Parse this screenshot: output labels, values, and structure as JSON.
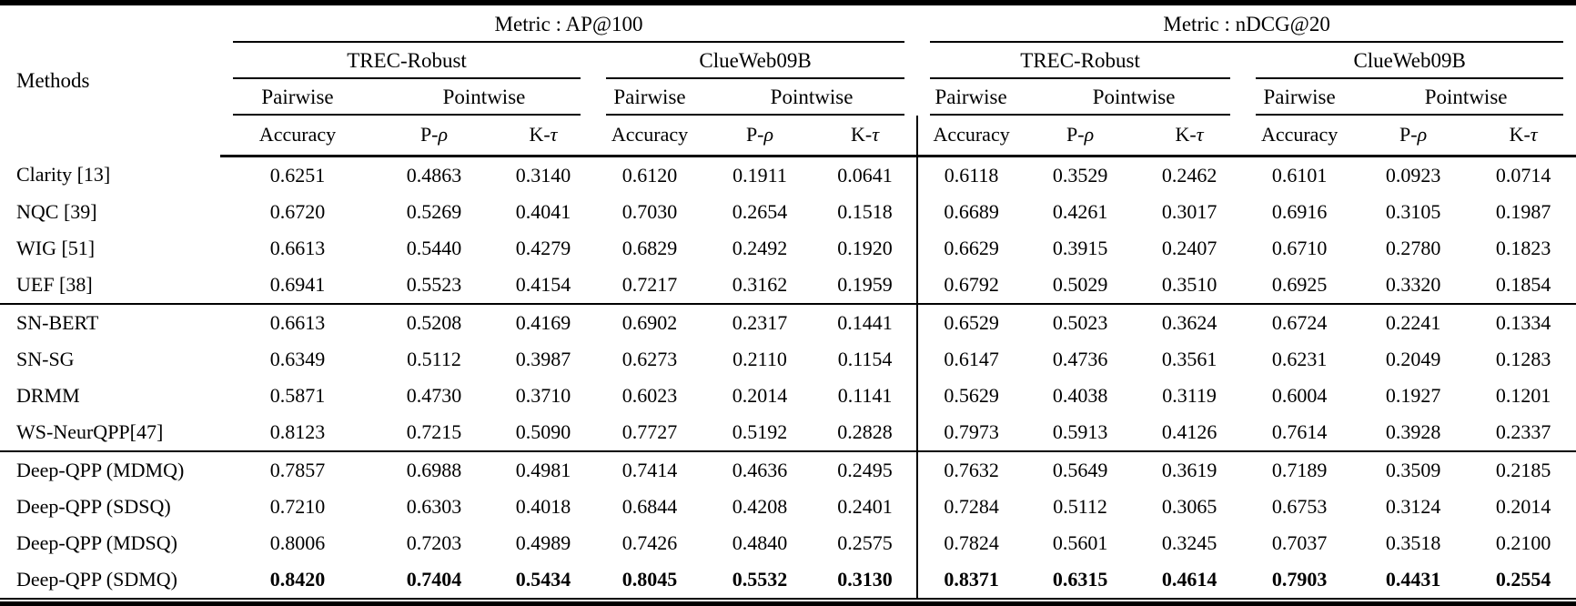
{
  "table": {
    "methods_header": "Methods",
    "metric_groups": [
      {
        "label": "Metric : AP@100"
      },
      {
        "label": "Metric : nDCG@20"
      }
    ],
    "dataset_headers": [
      "TREC-Robust",
      "ClueWeb09B"
    ],
    "eval_type_headers": {
      "pairwise": "Pairwise",
      "pointwise": "Pointwise"
    },
    "col_headers": [
      {
        "prefix": "Accuracy",
        "greek": ""
      },
      {
        "prefix": "P-",
        "greek": "ρ"
      },
      {
        "prefix": "K-",
        "greek": "τ"
      }
    ],
    "groups": [
      {
        "rows": [
          {
            "method": "Clarity [13]",
            "bold": false,
            "values": [
              "0.6251",
              "0.4863",
              "0.3140",
              "0.6120",
              "0.1911",
              "0.0641",
              "0.6118",
              "0.3529",
              "0.2462",
              "0.6101",
              "0.0923",
              "0.0714"
            ]
          },
          {
            "method": "NQC [39]",
            "bold": false,
            "values": [
              "0.6720",
              "0.5269",
              "0.4041",
              "0.7030",
              "0.2654",
              "0.1518",
              "0.6689",
              "0.4261",
              "0.3017",
              "0.6916",
              "0.3105",
              "0.1987"
            ]
          },
          {
            "method": "WIG [51]",
            "bold": false,
            "values": [
              "0.6613",
              "0.5440",
              "0.4279",
              "0.6829",
              "0.2492",
              "0.1920",
              "0.6629",
              "0.3915",
              "0.2407",
              "0.6710",
              "0.2780",
              "0.1823"
            ]
          },
          {
            "method": "UEF [38]",
            "bold": false,
            "values": [
              "0.6941",
              "0.5523",
              "0.4154",
              "0.7217",
              "0.3162",
              "0.1959",
              "0.6792",
              "0.5029",
              "0.3510",
              "0.6925",
              "0.3320",
              "0.1854"
            ]
          }
        ]
      },
      {
        "rows": [
          {
            "method": "SN-BERT",
            "bold": false,
            "values": [
              "0.6613",
              "0.5208",
              "0.4169",
              "0.6902",
              "0.2317",
              "0.1441",
              "0.6529",
              "0.5023",
              "0.3624",
              "0.6724",
              "0.2241",
              "0.1334"
            ]
          },
          {
            "method": "SN-SG",
            "bold": false,
            "values": [
              "0.6349",
              "0.5112",
              "0.3987",
              "0.6273",
              "0.2110",
              "0.1154",
              "0.6147",
              "0.4736",
              "0.3561",
              "0.6231",
              "0.2049",
              "0.1283"
            ]
          },
          {
            "method": "DRMM",
            "bold": false,
            "values": [
              "0.5871",
              "0.4730",
              "0.3710",
              "0.6023",
              "0.2014",
              "0.1141",
              "0.5629",
              "0.4038",
              "0.3119",
              "0.6004",
              "0.1927",
              "0.1201"
            ]
          },
          {
            "method": "WS-NeurQPP[47]",
            "bold": false,
            "values": [
              "0.8123",
              "0.7215",
              "0.5090",
              "0.7727",
              "0.5192",
              "0.2828",
              "0.7973",
              "0.5913",
              "0.4126",
              "0.7614",
              "0.3928",
              "0.2337"
            ]
          }
        ]
      },
      {
        "rows": [
          {
            "method": "Deep-QPP (MDMQ)",
            "bold": false,
            "values": [
              "0.7857",
              "0.6988",
              "0.4981",
              "0.7414",
              "0.4636",
              "0.2495",
              "0.7632",
              "0.5649",
              "0.3619",
              "0.7189",
              "0.3509",
              "0.2185"
            ]
          },
          {
            "method": "Deep-QPP (SDSQ)",
            "bold": false,
            "values": [
              "0.7210",
              "0.6303",
              "0.4018",
              "0.6844",
              "0.4208",
              "0.2401",
              "0.7284",
              "0.5112",
              "0.3065",
              "0.6753",
              "0.3124",
              "0.2014"
            ]
          },
          {
            "method": "Deep-QPP (MDSQ)",
            "bold": false,
            "values": [
              "0.8006",
              "0.7203",
              "0.4989",
              "0.7426",
              "0.4840",
              "0.2575",
              "0.7824",
              "0.5601",
              "0.3245",
              "0.7037",
              "0.3518",
              "0.2100"
            ]
          },
          {
            "method": "Deep-QPP (SDMQ)",
            "bold": true,
            "values": [
              "0.8420",
              "0.7404",
              "0.5434",
              "0.8045",
              "0.5532",
              "0.3130",
              "0.8371",
              "0.6315",
              "0.4614",
              "0.7903",
              "0.4431",
              "0.2554"
            ]
          }
        ]
      }
    ]
  }
}
